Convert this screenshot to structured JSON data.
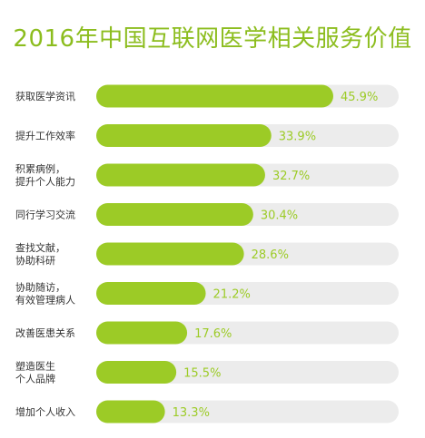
{
  "chart_data": {
    "type": "bar",
    "orientation": "horizontal",
    "title": "2016年中国互联网医学相关服务价值",
    "categories": [
      [
        "获取医学资讯"
      ],
      [
        "提升工作效率"
      ],
      [
        "积累病例，",
        "提升个人能力"
      ],
      [
        "同行学习交流"
      ],
      [
        "查找文献，",
        "协助科研"
      ],
      [
        "协助随访，",
        "有效管理病人"
      ],
      [
        "改善医患关系"
      ],
      [
        "塑造医生",
        "个人品牌"
      ],
      [
        "增加个人收入"
      ]
    ],
    "values": [
      45.9,
      33.9,
      32.7,
      30.4,
      28.6,
      21.2,
      17.6,
      15.5,
      13.3
    ],
    "value_labels": [
      "45.9%",
      "33.9%",
      "32.7%",
      "30.4%",
      "28.6%",
      "21.2%",
      "17.6%",
      "15.5%",
      "13.3%"
    ],
    "xlim": [
      0,
      50
    ],
    "colors": {
      "bar": "#9ccb26",
      "track": "#ececec",
      "title": "#8cbd1e",
      "label": "#333333",
      "value": "#9ccb26"
    }
  }
}
